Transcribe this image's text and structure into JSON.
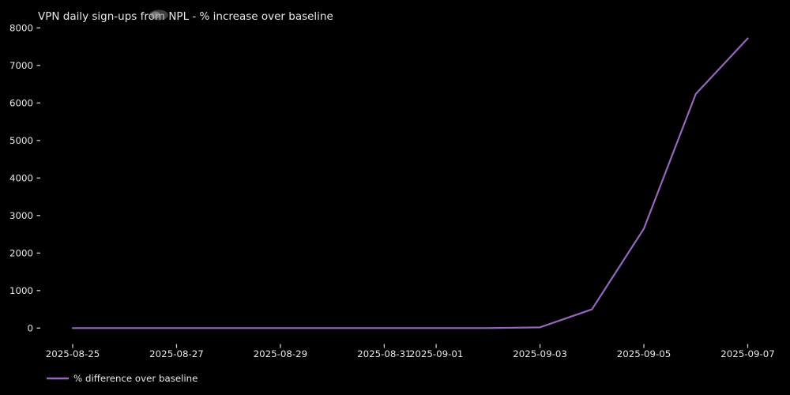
{
  "window": {
    "background": "#000000",
    "text_color": "#e8e8e8",
    "tick_color": "#cccccc"
  },
  "chart_data": {
    "type": "line",
    "title": "VPN daily sign-ups from NPL - % increase over baseline",
    "x": [
      "2025-08-25",
      "2025-08-26",
      "2025-08-27",
      "2025-08-28",
      "2025-08-29",
      "2025-08-30",
      "2025-08-31",
      "2025-09-01",
      "2025-09-02",
      "2025-09-03",
      "2025-09-04",
      "2025-09-05",
      "2025-09-06",
      "2025-09-07"
    ],
    "series": [
      {
        "name": "% difference over baseline",
        "color": "#9467bd",
        "values": [
          0,
          0,
          0,
          0,
          0,
          0,
          0,
          0,
          0,
          20,
          500,
          2650,
          6240,
          7720
        ]
      }
    ],
    "xlabel": "",
    "ylabel": "",
    "yticks": [
      0,
      1000,
      2000,
      3000,
      4000,
      5000,
      6000,
      7000,
      8000
    ],
    "ylim": [
      0,
      8000
    ],
    "xtick_labels": [
      "2025-08-25",
      "2025-08-27",
      "2025-08-29",
      "2025-08-31",
      "2025-09-01",
      "2025-09-03",
      "2025-09-05",
      "2025-09-07"
    ],
    "grid": false,
    "spines": false,
    "legend_position": "below-axis-lower-left",
    "legend_entries": [
      "% difference over baseline"
    ]
  }
}
